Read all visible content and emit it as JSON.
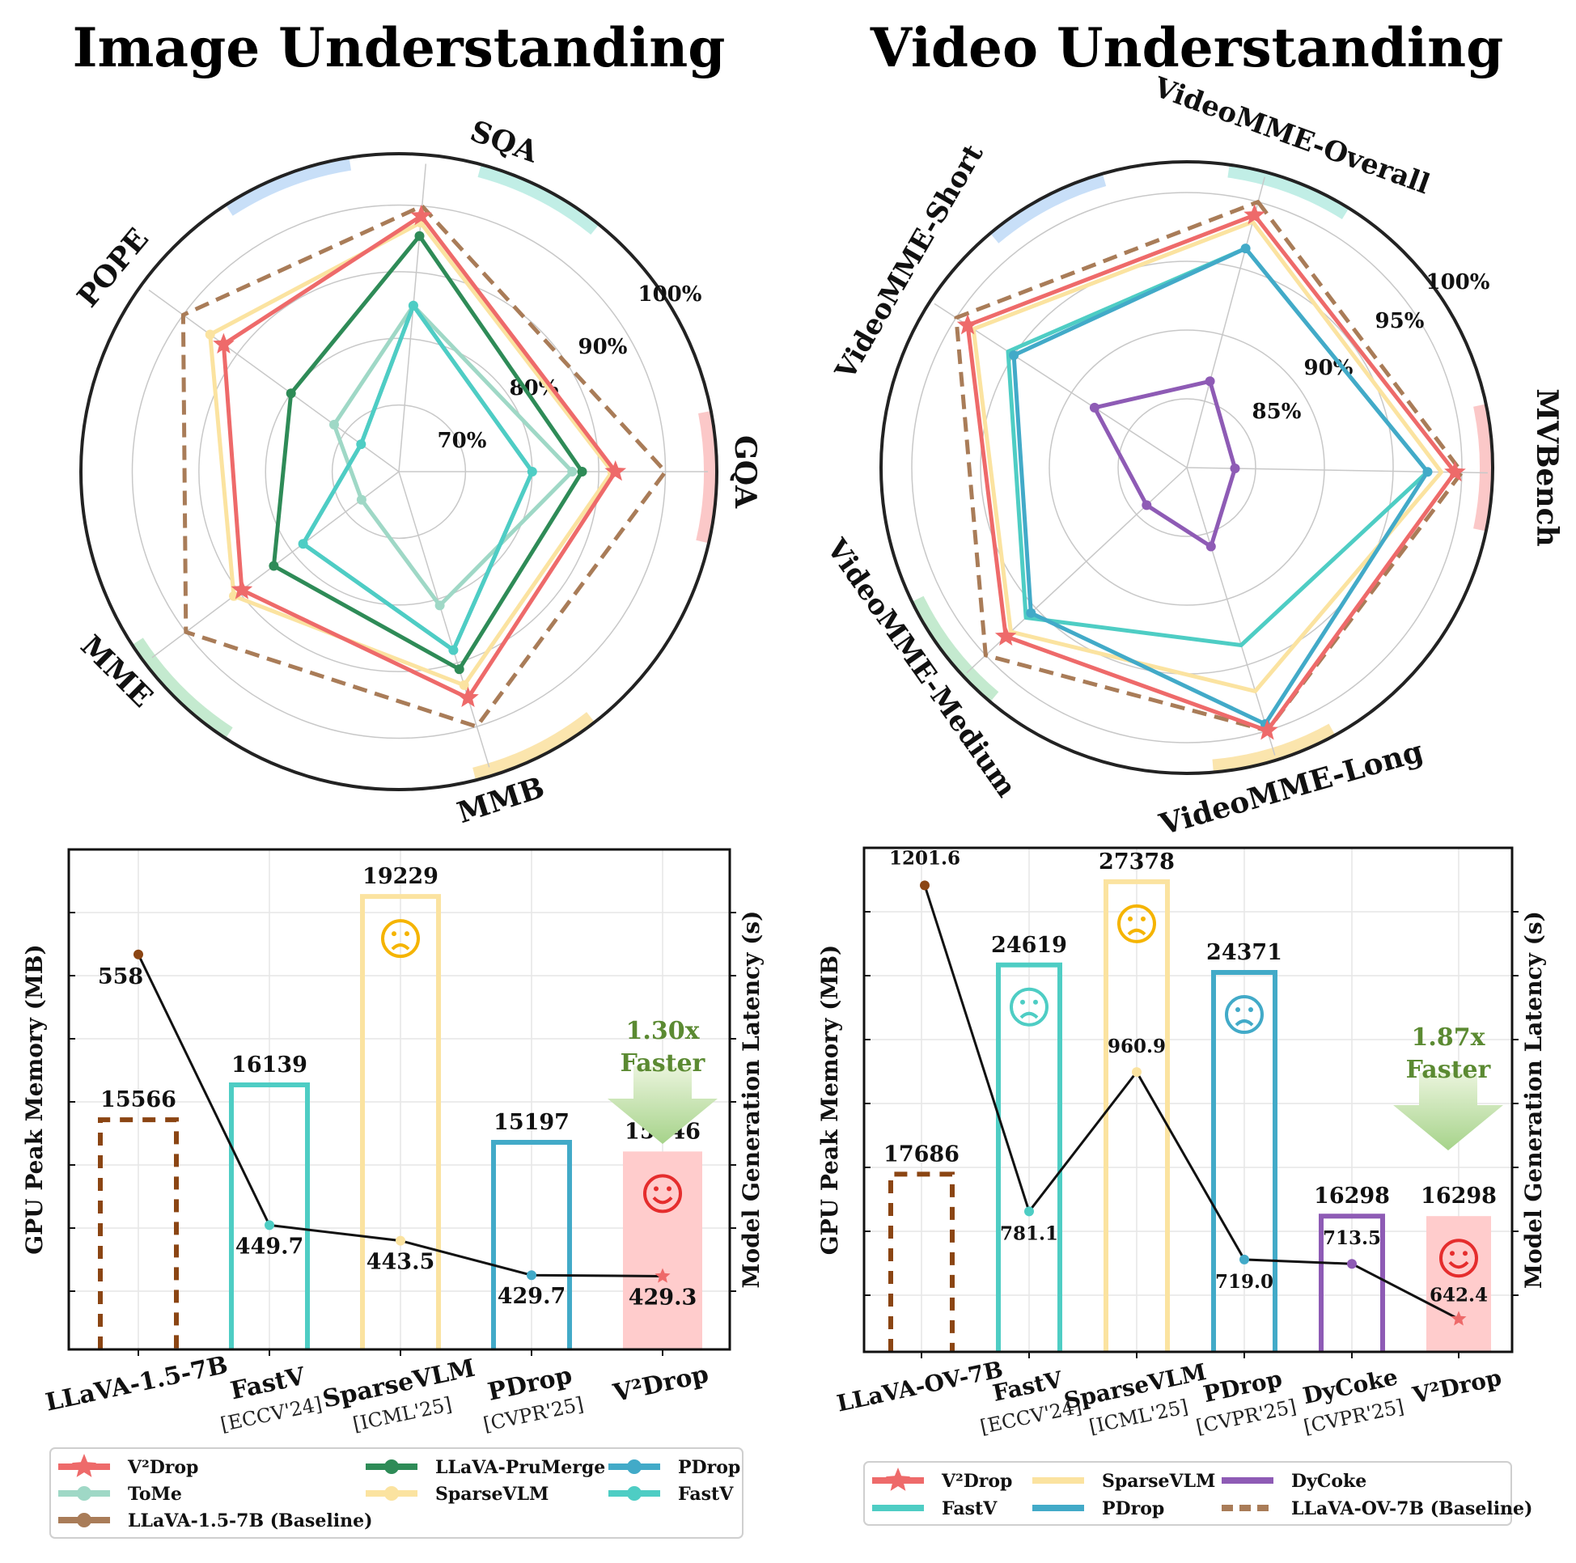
{
  "titles": {
    "image": "Image Understanding",
    "video": "Video Understanding"
  },
  "colors": {
    "v2drop": "#ee6a6a",
    "tome": "#9fd8c6",
    "pruMerge": "#2e8b57",
    "sparsevlm": "#fbe3a0",
    "pdrop": "#42aac8",
    "fastv": "#4ecdc4",
    "dycoke": "#8e5bb5",
    "baseline": "#a97c58",
    "baselineBar": "#8b4513",
    "faster": "#5b8a32",
    "sad": "#f5b400",
    "happy": "#e52d2d",
    "pinkFill": "#ffcccc"
  },
  "chart_data": [
    {
      "id": "image-radar",
      "type": "radar",
      "title": "Image Understanding",
      "axes": [
        "SQA",
        "GQA",
        "MMB",
        "MME",
        "POPE"
      ],
      "ring_labels": [
        "70%",
        "80%",
        "90%",
        "100%"
      ],
      "range": [
        60,
        102
      ],
      "series": [
        {
          "name": "V²Drop",
          "color": "#ee6a6a",
          "marker": "star",
          "values": [
            98.5,
            92.5,
            95.5,
            89.5,
            92.5
          ]
        },
        {
          "name": "ToMe",
          "color": "#9fd8c6",
          "marker": "circle",
          "values": [
            85,
            86,
            81,
            67,
            72
          ]
        },
        {
          "name": "LLaVA-PruMerge",
          "color": "#2e8b57",
          "marker": "circle",
          "values": [
            95.5,
            87.5,
            91,
            83.5,
            80
          ]
        },
        {
          "name": "SparseVLM",
          "color": "#fbe3a0",
          "marker": "circle",
          "values": [
            97.5,
            92,
            93.5,
            91,
            95
          ]
        },
        {
          "name": "PDrop",
          "color": "#42aac8",
          "marker": "none",
          "values": [
            85,
            80,
            88,
            78,
            67
          ]
        },
        {
          "name": "FastV",
          "color": "#4ecdc4",
          "marker": "circle",
          "values": [
            85,
            80,
            88,
            78,
            67
          ]
        },
        {
          "name": "LLaVA-1.5-7B (Baseline)",
          "color": "#a97c58",
          "marker": "none",
          "dashed": true,
          "values": [
            100,
            100,
            100,
            100,
            100
          ]
        }
      ]
    },
    {
      "id": "video-radar",
      "type": "radar",
      "title": "Video Understanding",
      "axes": [
        "VideoMME-Overall",
        "MVBench",
        "VideoMME-Long",
        "VideoMME-Medium",
        "VideoMME-Short"
      ],
      "ring_labels": [
        "85%",
        "90%",
        "95%",
        "100%"
      ],
      "range": [
        80,
        101
      ],
      "series": [
        {
          "name": "V²Drop",
          "color": "#ee6a6a",
          "marker": "star",
          "values": [
            99,
            99.5,
            100,
            98,
            99
          ]
        },
        {
          "name": "FastV",
          "color": "#4ecdc4",
          "marker": "none",
          "values": [
            96.5,
            97.5,
            93.5,
            96,
            95.5
          ]
        },
        {
          "name": "SparseVLM",
          "color": "#fbe3a0",
          "marker": "none",
          "values": [
            98.5,
            98.5,
            97,
            97.5,
            98.5
          ]
        },
        {
          "name": "PDrop",
          "color": "#42aac8",
          "marker": "circle",
          "values": [
            96.5,
            97.5,
            99.5,
            95.5,
            95
          ]
        },
        {
          "name": "DyCoke",
          "color": "#8e5bb5",
          "marker": "circle",
          "values": [
            86.5,
            83.5,
            86,
            84,
            88
          ]
        },
        {
          "name": "LLaVA-OV-7B (Baseline)",
          "color": "#a97c58",
          "marker": "none",
          "dashed": true,
          "values": [
            100,
            100,
            100,
            100,
            100
          ]
        }
      ]
    },
    {
      "id": "image-bars",
      "type": "bar",
      "ylabel": "GPU Peak Memory (MB)",
      "ylabel_right": "Model Generation Latency (s)",
      "categories": [
        "LLaVA-1.5-7B",
        "FastV",
        "SparseVLM",
        "PDrop",
        "V²Drop"
      ],
      "category_sublabels": [
        "",
        "[ECCV'24]",
        "[ICML'25]",
        "[CVPR'25]",
        ""
      ],
      "memory": [
        15566,
        16139,
        19229,
        15197,
        15046
      ],
      "memory_ylim": [
        11800,
        20000
      ],
      "latency": [
        558,
        449.7,
        443.5,
        429.7,
        429.3
      ],
      "latency_ylim": [
        400,
        600
      ],
      "speedup": [
        "1.30x",
        "Faster"
      ]
    },
    {
      "id": "video-bars",
      "type": "bar",
      "ylabel": "GPU Peak Memory (MB)",
      "ylabel_right": "Model Generation Latency (s)",
      "categories": [
        "LLaVA-OV-7B",
        "FastV",
        "SparseVLM",
        "PDrop",
        "DyCoke",
        "V²Drop"
      ],
      "category_sublabels": [
        "",
        "[ECCV'24]",
        "[ICML'25]",
        "[CVPR'25]",
        "[CVPR'25]",
        ""
      ],
      "memory": [
        17686,
        24619,
        27378,
        24371,
        16298,
        16298
      ],
      "memory_ylim": [
        11800,
        28500
      ],
      "latency": [
        1201.6,
        781.1,
        960.9,
        719.0,
        713.5,
        642.4
      ],
      "latency_labels": [
        "1201.6",
        "781.1",
        "960.9",
        "719.0",
        "713.5",
        "642.4"
      ],
      "latency_ylim": [
        600,
        1250
      ],
      "speedup": [
        "1.87x",
        "Faster"
      ]
    }
  ],
  "legends": {
    "image": [
      "V²Drop",
      "ToMe",
      "LLaVA-1.5-7B (Baseline)",
      "LLaVA-PruMerge",
      "SparseVLM",
      "PDrop",
      "FastV"
    ],
    "video": [
      "V²Drop",
      "FastV",
      "SparseVLM",
      "PDrop",
      "DyCoke",
      "LLaVA-OV-7B (Baseline)"
    ]
  }
}
